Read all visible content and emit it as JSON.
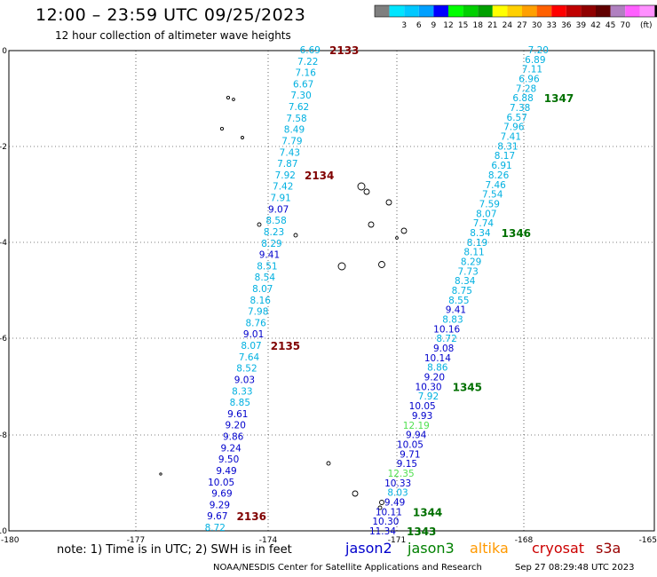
{
  "header": {
    "title": "12:00 – 23:59 UTC 09/25/2023",
    "subtitle": "12 hour collection of altimeter wave heights"
  },
  "colorbar": {
    "unit": "(ft)",
    "colors": [
      "#7f7f7f",
      "#00e5ff",
      "#00c8ff",
      "#00a0ff",
      "#0000ff",
      "#00ff00",
      "#00d000",
      "#00a000",
      "#ffff00",
      "#ffd000",
      "#ffa000",
      "#ff6000",
      "#ff0000",
      "#c00000",
      "#900000",
      "#600000",
      "#b080c0",
      "#ff60ff",
      "#ff90ff",
      "#000000"
    ],
    "labels": [
      "3",
      "6",
      "9",
      "12",
      "15",
      "18",
      "21",
      "24",
      "27",
      "30",
      "33",
      "36",
      "39",
      "42",
      "45",
      "70"
    ]
  },
  "axes": {
    "x_ticks": [
      "-180",
      "-177",
      "-174",
      "-171",
      "-168",
      "-165"
    ],
    "y_ticks": [
      "0",
      "-2",
      "-4",
      "-6",
      "-8",
      "-10"
    ]
  },
  "footer": {
    "note": "note:  1) Time is in UTC;  2) SWH is in feet",
    "credit": "NOAA/NESDIS Center for Satellite Applications and Research",
    "timestamp": "Sep 27 08:29:48 UTC 2023"
  },
  "satellites": [
    {
      "name": "jason2",
      "color": "#0000cc"
    },
    {
      "name": "jason3",
      "color": "#008000"
    },
    {
      "name": "altika",
      "color": "#ff9900"
    },
    {
      "name": "cryosat",
      "color": "#cc0000"
    },
    {
      "name": "s3a",
      "color": "#990000"
    }
  ],
  "tracks": {
    "west": {
      "values": [
        "6.69",
        "7.22",
        "7.16",
        "6.67",
        "7.30",
        "7.62",
        "7.58",
        "8.49",
        "7.79",
        "7.43",
        "7.87",
        "7.92",
        "7.42",
        "7.91",
        "9.07",
        "8.58",
        "8.23",
        "8.29",
        "9.41",
        "8.51",
        "8.54",
        "8.07",
        "8.16",
        "7.98",
        "8.76",
        "9.01",
        "8.07",
        "7.64",
        "8.52",
        "9.03",
        "8.33",
        "8.85",
        "9.61",
        "9.20",
        "9.86",
        "9.24",
        "9.50",
        "9.49",
        "10.05",
        "9.69",
        "9.29",
        "9.67",
        "8.72"
      ],
      "colors": [
        "#00b0e0",
        "#00b0e0",
        "#00b0e0",
        "#00b0e0",
        "#00b0e0",
        "#00b0e0",
        "#00b0e0",
        "#00b0e0",
        "#00b0e0",
        "#00b0e0",
        "#00b0e0",
        "#00b0e0",
        "#00b0e0",
        "#00b0e0",
        "#0000cc",
        "#00b0e0",
        "#00b0e0",
        "#00b0e0",
        "#0000cc",
        "#00b0e0",
        "#00b0e0",
        "#00b0e0",
        "#00b0e0",
        "#00b0e0",
        "#00b0e0",
        "#0000cc",
        "#00b0e0",
        "#00b0e0",
        "#00b0e0",
        "#0000cc",
        "#00b0e0",
        "#00b0e0",
        "#0000cc",
        "#0000cc",
        "#0000cc",
        "#0000cc",
        "#0000cc",
        "#0000cc",
        "#0000cc",
        "#0000cc",
        "#0000cc",
        "#0000cc",
        "#00b0e0"
      ]
    },
    "east": {
      "values": [
        "7.20",
        "6.89",
        "7.11",
        "6.96",
        "7.28",
        "6.88",
        "7.38",
        "6.57",
        "7.96",
        "7.41",
        "8.31",
        "8.17",
        "6.91",
        "8.26",
        "7.46",
        "7.54",
        "7.59",
        "8.07",
        "7.74",
        "8.34",
        "8.19",
        "8.11",
        "8.29",
        "7.73",
        "8.34",
        "8.75",
        "8.55",
        "9.41",
        "8.83",
        "10.16",
        "8.72",
        "9.08",
        "10.14",
        "8.86",
        "9.20",
        "10.30",
        "7.92",
        "10.05",
        "9.93",
        "12.19",
        "9.94",
        "10.05",
        "9.71",
        "9.15",
        "12.35",
        "10.33",
        "8.03",
        "9.49",
        "10.11",
        "10.30",
        "11.34"
      ],
      "colors": [
        "#00b0e0",
        "#00b0e0",
        "#00b0e0",
        "#00b0e0",
        "#00b0e0",
        "#00b0e0",
        "#00b0e0",
        "#00b0e0",
        "#00b0e0",
        "#00b0e0",
        "#00b0e0",
        "#00b0e0",
        "#00b0e0",
        "#00b0e0",
        "#00b0e0",
        "#00b0e0",
        "#00b0e0",
        "#00b0e0",
        "#00b0e0",
        "#00b0e0",
        "#00b0e0",
        "#00b0e0",
        "#00b0e0",
        "#00b0e0",
        "#00b0e0",
        "#00b0e0",
        "#00b0e0",
        "#0000cc",
        "#00b0e0",
        "#0000cc",
        "#00b0e0",
        "#0000cc",
        "#0000cc",
        "#00b0e0",
        "#0000cc",
        "#0000cc",
        "#00b0e0",
        "#0000cc",
        "#0000cc",
        "#50e050",
        "#0000cc",
        "#0000cc",
        "#0000cc",
        "#0000cc",
        "#50e050",
        "#0000cc",
        "#00b0e0",
        "#0000cc",
        "#0000cc",
        "#0000cc",
        "#0000cc"
      ]
    }
  },
  "time_labels": [
    {
      "text": "2133",
      "color": "#800000",
      "side": "west",
      "index": 0
    },
    {
      "text": "2134",
      "color": "#800000",
      "side": "west",
      "index": 11
    },
    {
      "text": "2135",
      "color": "#800000",
      "side": "west",
      "index": 26
    },
    {
      "text": "2136",
      "color": "#800000",
      "side": "west",
      "index": 41
    },
    {
      "text": "1347",
      "color": "#007000",
      "side": "east",
      "index": 5
    },
    {
      "text": "1346",
      "color": "#007000",
      "side": "east",
      "index": 19
    },
    {
      "text": "1345",
      "color": "#007000",
      "side": "east",
      "index": 35
    },
    {
      "text": "1344",
      "color": "#007000",
      "side": "east",
      "index": 48
    },
    {
      "text": "1343",
      "color": "#007000",
      "side": "east",
      "index": 50
    }
  ]
}
